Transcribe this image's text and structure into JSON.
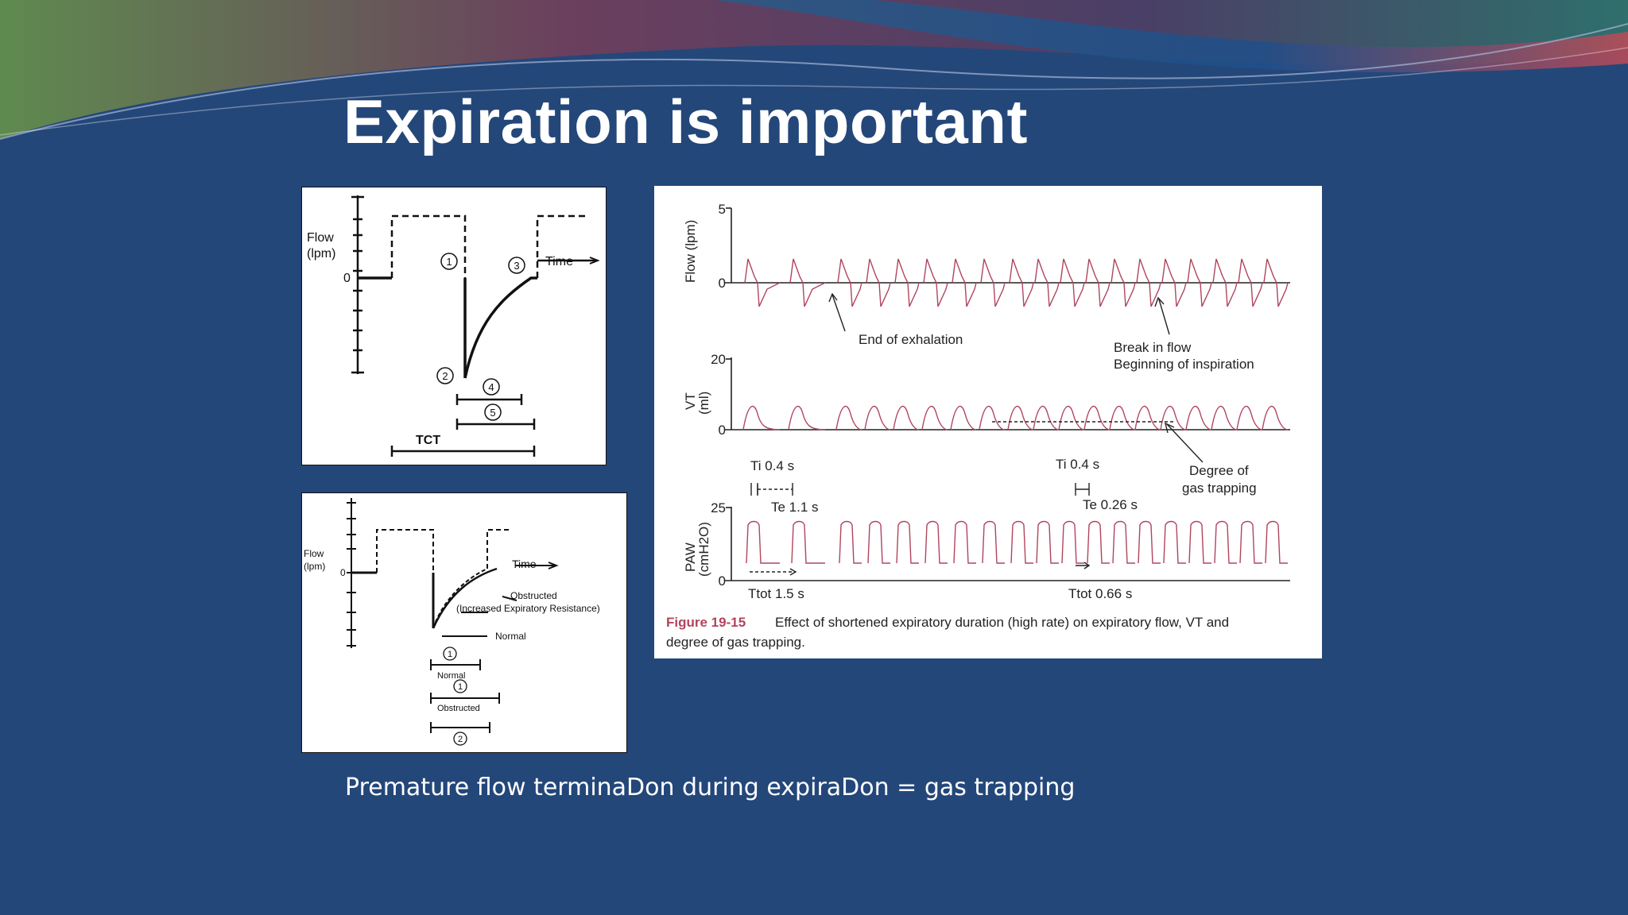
{
  "slide": {
    "title": "Expiration is important",
    "caption": "Premature flow terminaDon during expiraDon = gas trapping"
  },
  "colors": {
    "background": "#24477a",
    "trace": "#b0455e",
    "figure_label": "#b0455e"
  },
  "figure1": {
    "y_label_1": "Flow",
    "y_label_2": "(lpm)",
    "zero": "0",
    "time_label": "Time",
    "marker_1": "1",
    "marker_2": "2",
    "marker_3": "3",
    "marker_4": "4",
    "marker_5": "5",
    "tct": "TCT"
  },
  "figure2": {
    "y_label_1": "Flow",
    "y_label_2": "(lpm)",
    "zero": "0",
    "time_label": "Time",
    "obstructed_1": "Obstructed",
    "obstructed_2": "(Increased Expiratory Resistance)",
    "normal": "Normal",
    "marker_1": "1",
    "normal_bar": "Normal",
    "marker_1b": "1",
    "obstructed_bar": "Obstructed",
    "marker_2": "2"
  },
  "figure3": {
    "flow_axis": "Flow (lpm)",
    "flow_max": "5",
    "flow_zero": "0",
    "vt_axis": "VT",
    "vt_unit": "(ml)",
    "vt_max": "20",
    "vt_zero": "0",
    "paw_axis": "PAW",
    "paw_unit": "(cmH2O)",
    "paw_max": "25",
    "paw_zero": "0",
    "end_of_exhalation": "End of exhalation",
    "break_in_flow": "Break in flow",
    "beginning_of_inspiration": "Beginning of inspiration",
    "degree_of": "Degree of",
    "gas_trapping": "gas trapping",
    "ti_left": "Ti 0.4 s",
    "te_left": "Te 1.1 s",
    "ti_right": "Ti 0.4 s",
    "te_right": "Te 0.26 s",
    "ttot_left": "Ttot 1.5 s",
    "ttot_right": "Ttot 0.66 s",
    "figure_number": "Figure 19-15",
    "figure_caption_1": "Effect of shortened expiratory duration (high rate) on expiratory flow, VT and",
    "figure_caption_2": "degree of gas trapping."
  }
}
